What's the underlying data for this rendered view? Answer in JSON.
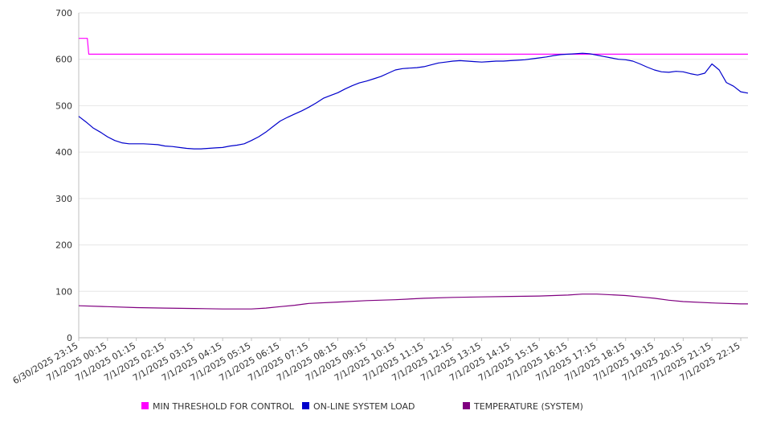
{
  "chart_data": {
    "type": "line",
    "title": "",
    "xlabel": "",
    "ylabel": "",
    "ylim": [
      0,
      700
    ],
    "yticks": [
      0,
      100,
      200,
      300,
      400,
      500,
      600,
      700
    ],
    "xlim": [
      0,
      23.25
    ],
    "x_tick_labels": [
      "6/30/2025 23:15",
      "7/1/2025 00:15",
      "7/1/2025 01:15",
      "7/1/2025 02:15",
      "7/1/2025 03:15",
      "7/1/2025 04:15",
      "7/1/2025 05:15",
      "7/1/2025 06:15",
      "7/1/2025 07:15",
      "7/1/2025 08:15",
      "7/1/2025 09:15",
      "7/1/2025 10:15",
      "7/1/2025 11:15",
      "7/1/2025 12:15",
      "7/1/2025 13:15",
      "7/1/2025 14:15",
      "7/1/2025 15:15",
      "7/1/2025 16:15",
      "7/1/2025 17:15",
      "7/1/2025 18:15",
      "7/1/2025 19:15",
      "7/1/2025 20:15",
      "7/1/2025 21:15",
      "7/1/2025 22:15"
    ],
    "grid": true,
    "legend_position": "bottom",
    "series": [
      {
        "name": "MIN THRESHOLD FOR CONTROL",
        "color": "#ff00ff",
        "points": [
          [
            0,
            645
          ],
          [
            0.3,
            645
          ],
          [
            0.35,
            611
          ],
          [
            23.25,
            611
          ]
        ]
      },
      {
        "name": "ON-LINE SYSTEM LOAD",
        "color": "#0000cc",
        "points": [
          [
            0,
            477
          ],
          [
            0.25,
            465
          ],
          [
            0.5,
            452
          ],
          [
            0.75,
            443
          ],
          [
            1,
            433
          ],
          [
            1.25,
            425
          ],
          [
            1.5,
            420
          ],
          [
            1.75,
            418
          ],
          [
            2,
            418
          ],
          [
            2.25,
            418
          ],
          [
            2.5,
            417
          ],
          [
            2.75,
            416
          ],
          [
            3,
            413
          ],
          [
            3.25,
            412
          ],
          [
            3.5,
            410
          ],
          [
            3.75,
            408
          ],
          [
            4,
            407
          ],
          [
            4.25,
            407
          ],
          [
            4.5,
            408
          ],
          [
            4.75,
            409
          ],
          [
            5,
            410
          ],
          [
            5.25,
            413
          ],
          [
            5.5,
            415
          ],
          [
            5.75,
            418
          ],
          [
            6,
            425
          ],
          [
            6.25,
            433
          ],
          [
            6.5,
            443
          ],
          [
            6.75,
            455
          ],
          [
            7,
            467
          ],
          [
            7.25,
            475
          ],
          [
            7.5,
            482
          ],
          [
            7.75,
            489
          ],
          [
            8,
            497
          ],
          [
            8.25,
            506
          ],
          [
            8.5,
            516
          ],
          [
            8.75,
            522
          ],
          [
            9,
            528
          ],
          [
            9.25,
            536
          ],
          [
            9.5,
            543
          ],
          [
            9.75,
            549
          ],
          [
            10,
            553
          ],
          [
            10.25,
            558
          ],
          [
            10.5,
            563
          ],
          [
            10.75,
            570
          ],
          [
            11,
            577
          ],
          [
            11.25,
            580
          ],
          [
            11.5,
            581
          ],
          [
            11.75,
            582
          ],
          [
            12,
            584
          ],
          [
            12.25,
            588
          ],
          [
            12.5,
            592
          ],
          [
            12.75,
            594
          ],
          [
            13,
            596
          ],
          [
            13.25,
            597
          ],
          [
            13.5,
            596
          ],
          [
            13.75,
            595
          ],
          [
            14,
            594
          ],
          [
            14.25,
            595
          ],
          [
            14.5,
            596
          ],
          [
            14.75,
            596
          ],
          [
            15,
            597
          ],
          [
            15.25,
            598
          ],
          [
            15.5,
            599
          ],
          [
            15.75,
            601
          ],
          [
            16,
            603
          ],
          [
            16.25,
            605
          ],
          [
            16.5,
            608
          ],
          [
            16.75,
            610
          ],
          [
            17,
            611
          ],
          [
            17.25,
            612
          ],
          [
            17.5,
            613
          ],
          [
            17.75,
            612
          ],
          [
            18,
            609
          ],
          [
            18.25,
            606
          ],
          [
            18.5,
            603
          ],
          [
            18.75,
            600
          ],
          [
            19,
            599
          ],
          [
            19.25,
            596
          ],
          [
            19.5,
            590
          ],
          [
            19.75,
            583
          ],
          [
            20,
            577
          ],
          [
            20.25,
            573
          ],
          [
            20.5,
            572
          ],
          [
            20.75,
            574
          ],
          [
            21,
            573
          ],
          [
            21.25,
            569
          ],
          [
            21.5,
            566
          ],
          [
            21.75,
            570
          ],
          [
            22,
            590
          ],
          [
            22.25,
            577
          ],
          [
            22.5,
            550
          ],
          [
            22.75,
            542
          ],
          [
            23,
            530
          ],
          [
            23.25,
            527
          ]
        ]
      },
      {
        "name": "TEMPERATURE (SYSTEM)",
        "color": "#800080",
        "points": [
          [
            0,
            69
          ],
          [
            1,
            67
          ],
          [
            2,
            65
          ],
          [
            3,
            64
          ],
          [
            4,
            63
          ],
          [
            5,
            62
          ],
          [
            6,
            62
          ],
          [
            6.5,
            64
          ],
          [
            7,
            67
          ],
          [
            7.5,
            70
          ],
          [
            8,
            74
          ],
          [
            9,
            77
          ],
          [
            10,
            80
          ],
          [
            11,
            82
          ],
          [
            12,
            85
          ],
          [
            13,
            87
          ],
          [
            14,
            88
          ],
          [
            15,
            89
          ],
          [
            16,
            90
          ],
          [
            17,
            92
          ],
          [
            17.5,
            94
          ],
          [
            18,
            94
          ],
          [
            19,
            91
          ],
          [
            19.5,
            88
          ],
          [
            20,
            85
          ],
          [
            20.5,
            81
          ],
          [
            21,
            78
          ],
          [
            22,
            75
          ],
          [
            23,
            73
          ],
          [
            23.25,
            73
          ]
        ]
      }
    ]
  }
}
